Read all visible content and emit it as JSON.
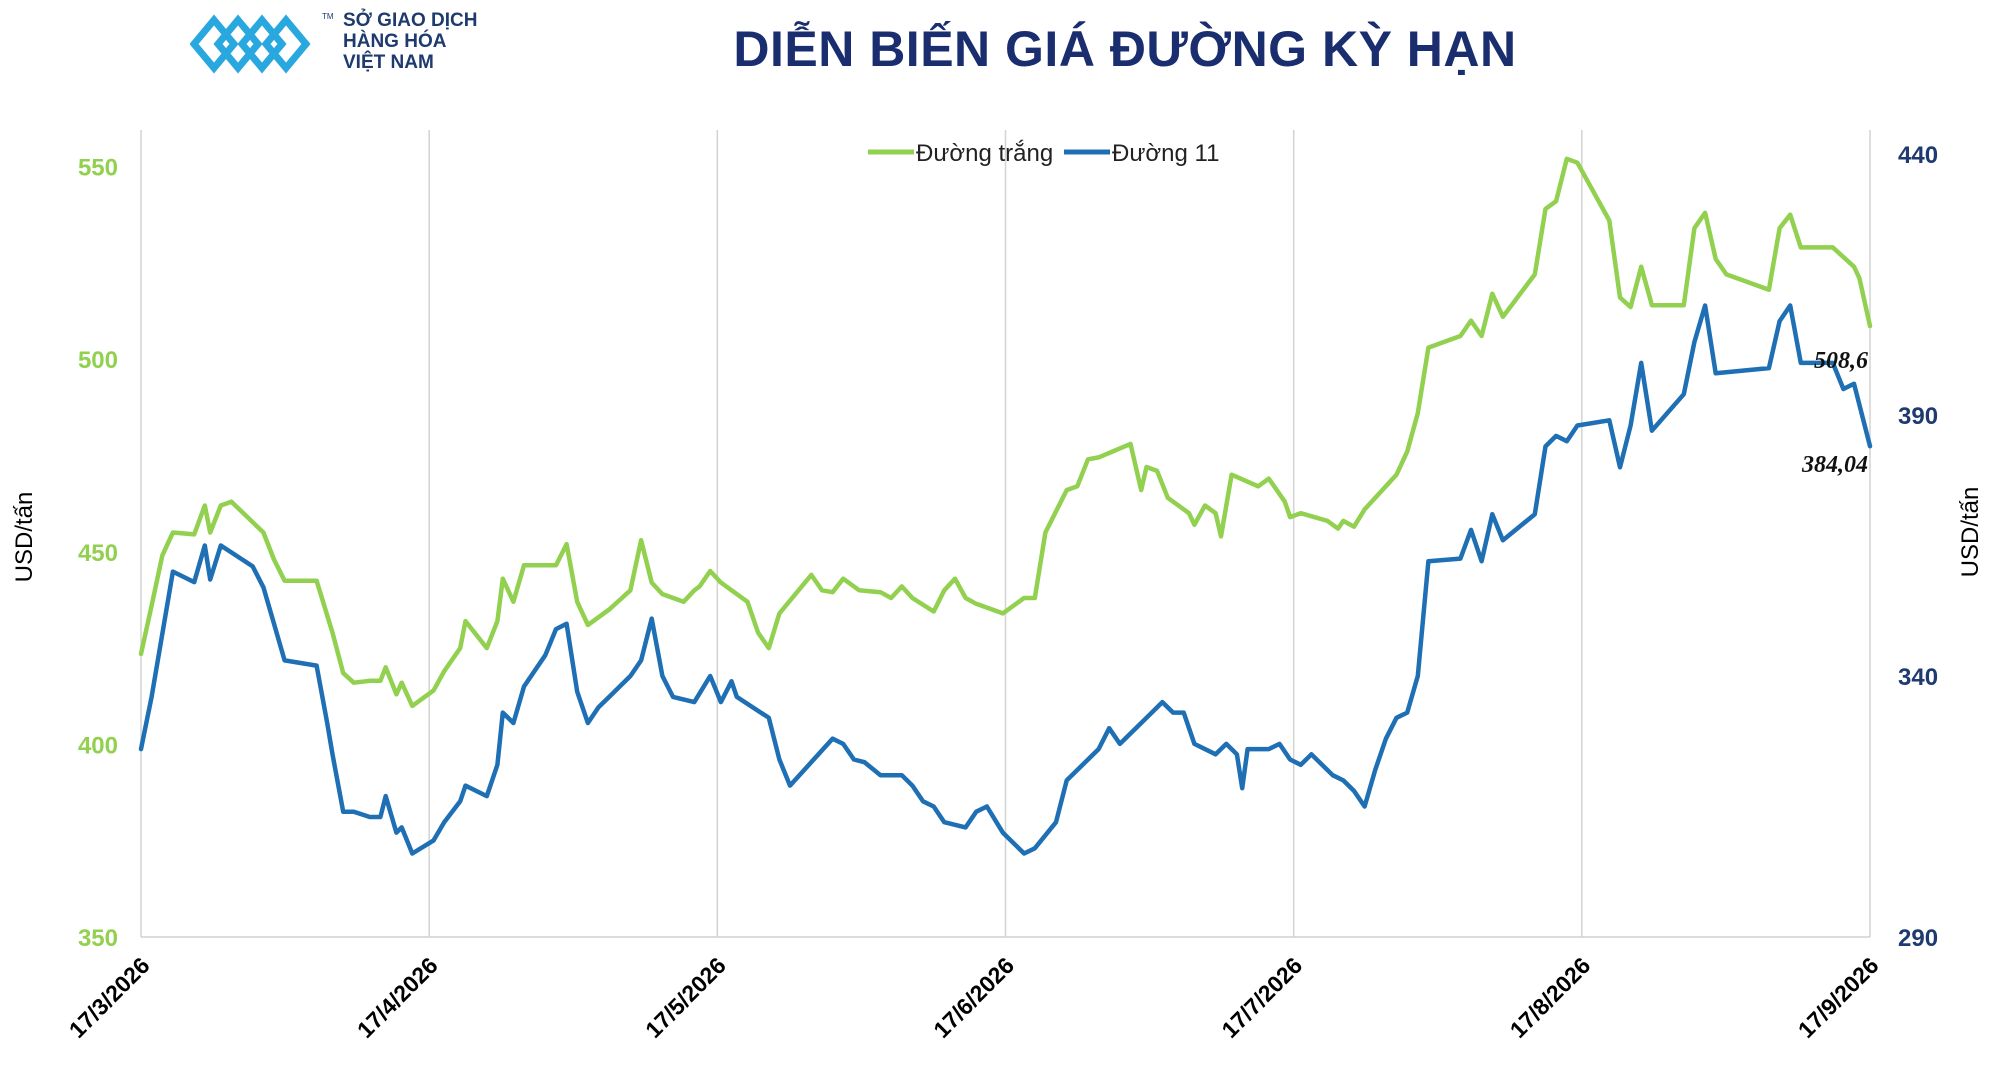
{
  "header": {
    "logo_line1": "SỞ GIAO DỊCH",
    "logo_line2": "HÀNG HÓA",
    "logo_line3": "VIỆT NAM",
    "logo_tm": "TM",
    "title": "DIỄN BIẾN GIÁ ĐƯỜNG KỲ HẠN"
  },
  "chart_data": {
    "type": "line",
    "title": "DIỄN BIẾN GIÁ ĐƯỜNG KỲ HẠN",
    "x_start": "2026-03-17",
    "x_end": "2026-09-17",
    "x_ticks": [
      "17/3/2026",
      "17/4/2026",
      "17/5/2026",
      "17/6/2026",
      "17/7/2026",
      "17/8/2026",
      "17/9/2026"
    ],
    "ylabel_left": "USD/tấn",
    "ylabel_right": "USD/tấn",
    "ylim_left": [
      350,
      560
    ],
    "yticks_left": [
      350,
      400,
      450,
      500,
      550
    ],
    "ylim_right": [
      290,
      445
    ],
    "yticks_right": [
      290,
      340,
      390,
      440
    ],
    "grid": "vertical",
    "legend": "top-center",
    "series": [
      {
        "name": "Đường trắng",
        "axis": "left",
        "color": "#92d050",
        "end_label": "508,6",
        "points": [
          [
            "2026-03-17",
            423.5
          ],
          [
            "2026-03-19",
            436
          ],
          [
            "2026-03-21",
            449
          ],
          [
            "2026-03-23",
            455
          ],
          [
            "2026-03-27",
            454.5
          ],
          [
            "2026-03-29",
            462
          ],
          [
            "2026-03-30",
            455
          ],
          [
            "2026-04-01",
            462
          ],
          [
            "2026-04-03",
            463
          ],
          [
            "2026-04-09",
            455
          ],
          [
            "2026-04-11",
            448
          ],
          [
            "2026-04-13",
            442.5
          ],
          [
            "2026-04-17",
            442.5
          ],
          [
            "2026-04-19",
            442.5
          ],
          [
            "2026-04-22",
            429
          ],
          [
            "2026-04-24",
            418.5
          ],
          [
            "2026-04-26",
            416
          ],
          [
            "2026-04-29",
            416.5
          ],
          [
            "2026-05-01",
            416.5
          ],
          [
            "2026-05-02",
            420
          ],
          [
            "2026-05-04",
            413
          ],
          [
            "2026-05-05",
            416
          ],
          [
            "2026-05-07",
            410
          ],
          [
            "2026-05-11",
            414
          ],
          [
            "2026-05-13",
            419
          ],
          [
            "2026-05-16",
            425
          ],
          [
            "2026-05-17",
            432
          ],
          [
            "2026-05-21",
            425
          ],
          [
            "2026-05-23",
            432
          ],
          [
            "2026-05-24",
            443
          ],
          [
            "2026-05-26",
            437
          ],
          [
            "2026-05-28",
            446.5
          ],
          [
            "2026-06-01",
            446.5
          ],
          [
            "2026-06-03",
            446.5
          ],
          [
            "2026-06-05",
            452
          ],
          [
            "2026-06-07",
            437
          ],
          [
            "2026-06-09",
            431
          ],
          [
            "2026-06-13",
            435
          ],
          [
            "2026-06-17",
            440
          ],
          [
            "2026-06-19",
            453
          ],
          [
            "2026-06-21",
            442
          ],
          [
            "2026-06-23",
            439
          ],
          [
            "2026-06-27",
            437
          ],
          [
            "2026-06-29",
            440
          ],
          [
            "2026-06-30",
            441
          ],
          [
            "2026-07-02",
            445
          ],
          [
            "2026-07-04",
            442
          ],
          [
            "2026-07-09",
            437
          ],
          [
            "2026-07-11",
            429
          ],
          [
            "2026-07-13",
            425
          ],
          [
            "2026-07-15",
            434
          ],
          [
            "2026-07-21",
            444
          ],
          [
            "2026-07-23",
            440
          ],
          [
            "2026-07-25",
            439.5
          ],
          [
            "2026-07-27",
            443
          ],
          [
            "2026-07-30",
            440
          ],
          [
            "2026-08-03",
            439.5
          ],
          [
            "2026-08-05",
            438
          ],
          [
            "2026-08-07",
            441
          ],
          [
            "2026-08-09",
            438
          ],
          [
            "2026-08-13",
            434.5
          ],
          [
            "2026-08-15",
            440
          ],
          [
            "2026-08-17",
            443
          ],
          [
            "2026-08-19",
            438
          ],
          [
            "2026-08-21",
            436.5
          ],
          [
            "2026-08-24",
            435
          ],
          [
            "2026-08-26",
            434
          ],
          [
            "2026-08-28",
            436
          ],
          [
            "2026-08-30",
            438
          ],
          [
            "2026-09-01",
            438
          ],
          [
            "2026-09-03",
            455
          ],
          [
            "2026-09-07",
            466
          ],
          [
            "2026-09-09",
            467
          ],
          [
            "2026-09-11",
            474
          ],
          [
            "2026-09-13",
            474.5
          ],
          [
            "2026-09-19",
            478
          ],
          [
            "2026-09-21",
            466
          ],
          [
            "2026-09-22",
            472
          ],
          [
            "2026-09-24",
            471
          ],
          [
            "2026-09-26",
            464
          ],
          [
            "2026-09-30",
            460
          ],
          [
            "2026-10-01",
            457
          ],
          [
            "2026-10-03",
            462
          ],
          [
            "2026-10-05",
            460
          ],
          [
            "2026-10-06",
            454
          ],
          [
            "2026-10-08",
            470
          ],
          [
            "2026-10-13",
            467
          ],
          [
            "2026-10-15",
            469
          ],
          [
            "2026-10-18",
            463
          ],
          [
            "2026-10-19",
            459
          ],
          [
            "2026-10-21",
            460
          ],
          [
            "2026-10-26",
            458
          ],
          [
            "2026-10-28",
            456
          ],
          [
            "2026-10-29",
            458
          ],
          [
            "2026-10-31",
            456.5
          ],
          [
            "2026-11-02",
            461
          ],
          [
            "2026-11-08",
            470
          ],
          [
            "2026-11-10",
            476
          ],
          [
            "2026-11-12",
            486
          ],
          [
            "2026-11-14",
            503
          ],
          [
            "2026-11-20",
            506
          ],
          [
            "2026-11-22",
            510
          ],
          [
            "2026-11-24",
            506
          ],
          [
            "2026-11-26",
            517
          ],
          [
            "2026-11-28",
            511
          ],
          [
            "2026-12-04",
            522
          ],
          [
            "2026-12-06",
            539
          ],
          [
            "2026-12-08",
            541
          ],
          [
            "2026-12-10",
            552
          ],
          [
            "2026-12-12",
            551
          ],
          [
            "2026-12-18",
            536
          ],
          [
            "2026-12-20",
            516
          ],
          [
            "2026-12-22",
            513.5
          ],
          [
            "2026-12-24",
            524
          ],
          [
            "2026-12-26",
            514
          ],
          [
            "2027-01-01",
            514
          ],
          [
            "2027-01-03",
            534
          ],
          [
            "2027-01-05",
            538
          ],
          [
            "2027-01-07",
            526
          ],
          [
            "2027-01-09",
            522
          ],
          [
            "2027-01-17",
            518
          ],
          [
            "2027-01-19",
            534
          ],
          [
            "2027-01-21",
            537.5
          ],
          [
            "2027-01-23",
            529
          ],
          [
            "2027-01-29",
            529
          ],
          [
            "2027-02-02",
            524
          ],
          [
            "2027-02-03",
            521
          ],
          [
            "2027-02-05",
            508.6
          ]
        ]
      },
      {
        "name": "Đường 11",
        "axis": "right",
        "color": "#1f6fb4",
        "end_label": "384,04",
        "points": [
          [
            "2026-03-17",
            326
          ],
          [
            "2026-03-19",
            336
          ],
          [
            "2026-03-23",
            360
          ],
          [
            "2026-03-27",
            358
          ],
          [
            "2026-03-29",
            365
          ],
          [
            "2026-03-30",
            358.5
          ],
          [
            "2026-04-01",
            365
          ],
          [
            "2026-04-07",
            361
          ],
          [
            "2026-04-09",
            357
          ],
          [
            "2026-04-11",
            350
          ],
          [
            "2026-04-13",
            343
          ],
          [
            "2026-04-19",
            342
          ],
          [
            "2026-04-21",
            331
          ],
          [
            "2026-04-22",
            325
          ],
          [
            "2026-04-24",
            314
          ],
          [
            "2026-04-26",
            314
          ],
          [
            "2026-04-29",
            313
          ],
          [
            "2026-05-01",
            313
          ],
          [
            "2026-05-02",
            317
          ],
          [
            "2026-05-04",
            310
          ],
          [
            "2026-05-05",
            311
          ],
          [
            "2026-05-07",
            306
          ],
          [
            "2026-05-11",
            308.5
          ],
          [
            "2026-05-13",
            312
          ],
          [
            "2026-05-16",
            316
          ],
          [
            "2026-05-17",
            319
          ],
          [
            "2026-05-21",
            317
          ],
          [
            "2026-05-23",
            323
          ],
          [
            "2026-05-24",
            333
          ],
          [
            "2026-05-26",
            331
          ],
          [
            "2026-05-28",
            338
          ],
          [
            "2026-06-01",
            344
          ],
          [
            "2026-06-03",
            349
          ],
          [
            "2026-06-05",
            350
          ],
          [
            "2026-06-07",
            337
          ],
          [
            "2026-06-09",
            331
          ],
          [
            "2026-06-11",
            334
          ],
          [
            "2026-06-13",
            336
          ],
          [
            "2026-06-17",
            340
          ],
          [
            "2026-06-19",
            343
          ],
          [
            "2026-06-21",
            351
          ],
          [
            "2026-06-23",
            340
          ],
          [
            "2026-06-25",
            336
          ],
          [
            "2026-06-29",
            335
          ],
          [
            "2026-07-02",
            340
          ],
          [
            "2026-07-04",
            335
          ],
          [
            "2026-07-06",
            339
          ],
          [
            "2026-07-07",
            336
          ],
          [
            "2026-07-13",
            332
          ],
          [
            "2026-07-15",
            324
          ],
          [
            "2026-07-17",
            319
          ],
          [
            "2026-07-25",
            328
          ],
          [
            "2026-07-27",
            327
          ],
          [
            "2026-07-29",
            324
          ],
          [
            "2026-07-31",
            323.5
          ],
          [
            "2026-08-03",
            321
          ],
          [
            "2026-08-07",
            321
          ],
          [
            "2026-08-09",
            319
          ],
          [
            "2026-08-11",
            316
          ],
          [
            "2026-08-13",
            315
          ],
          [
            "2026-08-15",
            312
          ],
          [
            "2026-08-19",
            311
          ],
          [
            "2026-08-21",
            314
          ],
          [
            "2026-08-23",
            315
          ],
          [
            "2026-08-26",
            310
          ],
          [
            "2026-08-30",
            306
          ],
          [
            "2026-09-01",
            307
          ],
          [
            "2026-09-05",
            312
          ],
          [
            "2026-09-07",
            320
          ],
          [
            "2026-09-11",
            324
          ],
          [
            "2026-09-13",
            326
          ],
          [
            "2026-09-15",
            330
          ],
          [
            "2026-09-17",
            327
          ],
          [
            "2026-09-21",
            331
          ],
          [
            "2026-09-25",
            335
          ],
          [
            "2026-09-27",
            333
          ],
          [
            "2026-09-29",
            333
          ],
          [
            "2026-10-01",
            327
          ],
          [
            "2026-10-05",
            325
          ],
          [
            "2026-10-07",
            327
          ],
          [
            "2026-10-09",
            325
          ],
          [
            "2026-10-10",
            318.5
          ],
          [
            "2026-10-11",
            326
          ],
          [
            "2026-10-15",
            326
          ],
          [
            "2026-10-17",
            327
          ],
          [
            "2026-10-19",
            324
          ],
          [
            "2026-10-21",
            323
          ],
          [
            "2026-10-23",
            325
          ],
          [
            "2026-10-27",
            321
          ],
          [
            "2026-10-29",
            320
          ],
          [
            "2026-10-31",
            318
          ],
          [
            "2026-11-02",
            315
          ],
          [
            "2026-11-04",
            322
          ],
          [
            "2026-11-06",
            328
          ],
          [
            "2026-11-08",
            332
          ],
          [
            "2026-11-10",
            333
          ],
          [
            "2026-11-12",
            340
          ],
          [
            "2026-11-14",
            362
          ],
          [
            "2026-11-20",
            362.5
          ],
          [
            "2026-11-22",
            368
          ],
          [
            "2026-11-24",
            362
          ],
          [
            "2026-11-26",
            371
          ],
          [
            "2026-11-28",
            366
          ],
          [
            "2026-12-04",
            371
          ],
          [
            "2026-12-06",
            384
          ],
          [
            "2026-12-08",
            386
          ],
          [
            "2026-12-10",
            385
          ],
          [
            "2026-12-12",
            388
          ],
          [
            "2026-12-18",
            389
          ],
          [
            "2026-12-20",
            380
          ],
          [
            "2026-12-22",
            388
          ],
          [
            "2026-12-24",
            400
          ],
          [
            "2026-12-26",
            387
          ],
          [
            "2027-01-01",
            394
          ],
          [
            "2027-01-03",
            404
          ],
          [
            "2027-01-05",
            411
          ],
          [
            "2027-01-07",
            398
          ],
          [
            "2027-01-17",
            399
          ],
          [
            "2027-01-19",
            408
          ],
          [
            "2027-01-21",
            411
          ],
          [
            "2027-01-23",
            400
          ],
          [
            "2027-01-29",
            400
          ],
          [
            "2027-01-31",
            395
          ],
          [
            "2027-02-02",
            396
          ],
          [
            "2027-02-05",
            384.04
          ]
        ]
      }
    ]
  }
}
